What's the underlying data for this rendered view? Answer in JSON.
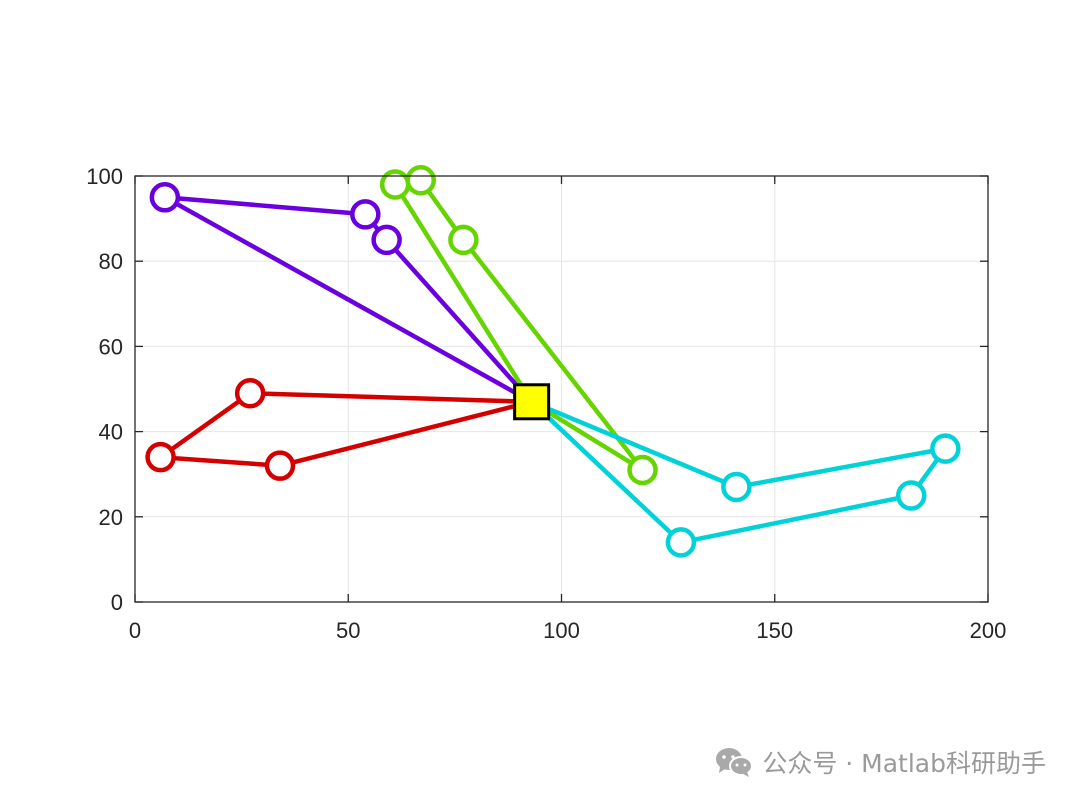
{
  "chart_data": {
    "type": "line",
    "title": "",
    "xlabel": "",
    "ylabel": "",
    "xlim": [
      0,
      200
    ],
    "ylim": [
      0,
      100
    ],
    "xticks": [
      0,
      50,
      100,
      150,
      200
    ],
    "yticks": [
      0,
      20,
      40,
      60,
      80,
      100
    ],
    "grid": true,
    "hub": {
      "x": 93,
      "y": 47,
      "marker": "square",
      "color": "#ffff00",
      "edge_color": "#000000"
    },
    "series": [
      {
        "color": "#d40000",
        "points": [
          [
            93,
            47
          ],
          [
            27,
            49
          ],
          [
            6,
            34
          ],
          [
            34,
            32
          ],
          [
            93,
            47
          ]
        ]
      },
      {
        "color": "#6a00e0",
        "points": [
          [
            93,
            47
          ],
          [
            59,
            85
          ],
          [
            54,
            91
          ],
          [
            7,
            95
          ],
          [
            93,
            47
          ]
        ]
      },
      {
        "color": "#66d400",
        "points": [
          [
            93,
            47
          ],
          [
            61,
            98
          ],
          [
            67,
            99
          ],
          [
            77,
            85
          ],
          [
            119,
            31
          ],
          [
            93,
            47
          ]
        ]
      },
      {
        "color": "#00d2d8",
        "points": [
          [
            93,
            47
          ],
          [
            141,
            27
          ],
          [
            190,
            36
          ],
          [
            182,
            25
          ],
          [
            128,
            14
          ],
          [
            93,
            47
          ]
        ]
      }
    ]
  },
  "watermark": {
    "text": "公众号 · Matlab科研助手",
    "logo_icon": "wechat-icon"
  }
}
